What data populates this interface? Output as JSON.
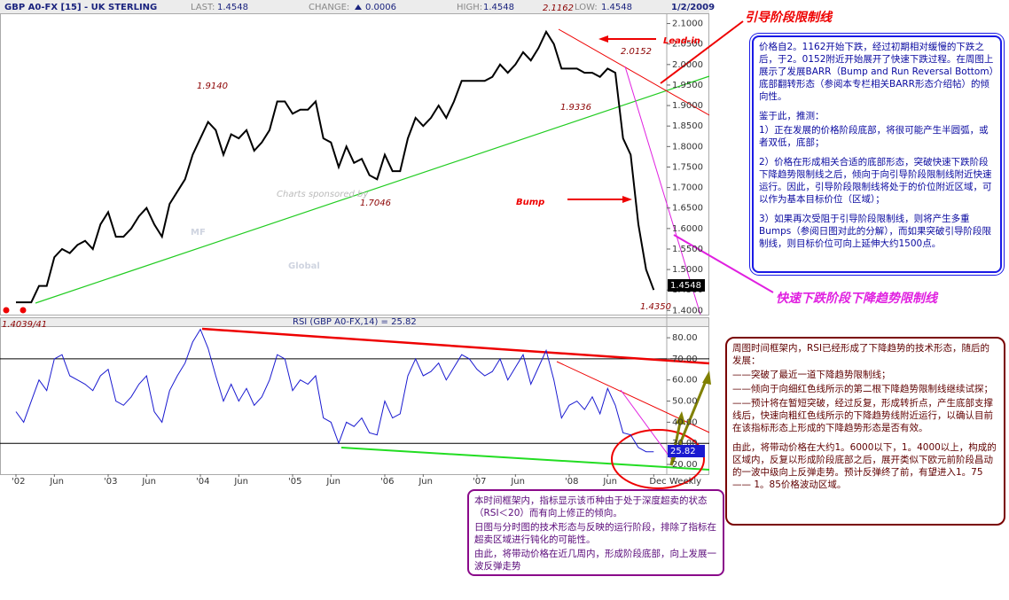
{
  "chart_data": {
    "type": "line",
    "header": {
      "symbol": "GBP A0-FX [15] - UK STERLING",
      "last_label": "LAST:",
      "last": "1.4548",
      "change_label": "CHANGE:",
      "change": "0.0006",
      "high_label": "HIGH:",
      "high": "1.4548",
      "low_label": "LOW:",
      "low": "1.4548",
      "date": "1/2/2009"
    },
    "categories": [
      "'02",
      null,
      null,
      null,
      null,
      "Jun",
      null,
      null,
      null,
      null,
      null,
      null,
      "'03",
      null,
      null,
      null,
      null,
      "Jun",
      null,
      null,
      null,
      null,
      null,
      null,
      "'04",
      null,
      null,
      null,
      null,
      "Jun",
      null,
      null,
      null,
      null,
      null,
      null,
      "'05",
      null,
      null,
      null,
      null,
      "Jun",
      null,
      null,
      null,
      null,
      null,
      null,
      "'06",
      null,
      null,
      null,
      null,
      "Jun",
      null,
      null,
      null,
      null,
      null,
      null,
      "'07",
      null,
      null,
      null,
      null,
      "Jun",
      null,
      null,
      null,
      null,
      null,
      null,
      "'08",
      null,
      null,
      null,
      null,
      "Jun",
      null,
      null,
      null,
      null,
      null,
      "Dec"
    ],
    "series": [
      {
        "color": "#000000",
        "values": [
          1.42,
          1.42,
          1.42,
          1.46,
          1.46,
          1.53,
          1.55,
          1.54,
          1.56,
          1.57,
          1.55,
          1.61,
          1.64,
          1.58,
          1.58,
          1.6,
          1.63,
          1.65,
          1.61,
          1.58,
          1.66,
          1.69,
          1.72,
          1.78,
          1.82,
          1.86,
          1.84,
          1.78,
          1.83,
          1.82,
          1.84,
          1.79,
          1.81,
          1.84,
          1.91,
          1.91,
          1.88,
          1.89,
          1.89,
          1.91,
          1.82,
          1.81,
          1.75,
          1.8,
          1.76,
          1.77,
          1.73,
          1.72,
          1.78,
          1.74,
          1.74,
          1.82,
          1.87,
          1.85,
          1.87,
          1.9,
          1.87,
          1.91,
          1.96,
          1.96,
          1.96,
          1.96,
          1.97,
          2.0,
          1.98,
          2.0,
          2.03,
          2.01,
          2.04,
          2.08,
          2.05,
          1.99,
          1.99,
          1.99,
          1.98,
          1.98,
          1.97,
          1.99,
          1.98,
          1.82,
          1.78,
          1.61,
          1.5,
          1.45
        ]
      },
      {
        "name": "RSI (GBP A0-FX,14) = 25.82",
        "color": "#1a1ad0",
        "axis": "y2",
        "values": [
          45,
          40,
          50,
          60,
          55,
          70,
          72,
          62,
          60,
          58,
          55,
          62,
          65,
          50,
          48,
          52,
          58,
          62,
          45,
          40,
          55,
          62,
          68,
          78,
          84,
          75,
          62,
          50,
          58,
          50,
          56,
          48,
          52,
          60,
          72,
          70,
          55,
          60,
          58,
          62,
          42,
          40,
          30,
          40,
          38,
          42,
          35,
          34,
          50,
          42,
          44,
          62,
          70,
          62,
          64,
          68,
          60,
          66,
          72,
          70,
          65,
          62,
          64,
          70,
          60,
          66,
          72,
          58,
          66,
          74,
          60,
          42,
          48,
          50,
          46,
          52,
          44,
          56,
          48,
          35,
          34,
          28,
          26,
          26
        ]
      }
    ],
    "ylim": [
      1.39,
      2.125
    ],
    "yticks": [
      {
        "value": 1.4,
        "label": "1.4000"
      },
      {
        "value": 1.45,
        "label": "1.4500"
      },
      {
        "value": 1.5,
        "label": "1.5000"
      },
      {
        "value": 1.55,
        "label": "1.5500"
      },
      {
        "value": 1.6,
        "label": "1.6000"
      },
      {
        "value": 1.65,
        "label": "1.6500"
      },
      {
        "value": 1.7,
        "label": "1.7000"
      },
      {
        "value": 1.75,
        "label": "1.7500"
      },
      {
        "value": 1.8,
        "label": "1.8000"
      },
      {
        "value": 1.85,
        "label": "1.8500"
      },
      {
        "value": 1.9,
        "label": "1.9000"
      },
      {
        "value": 1.95,
        "label": "1.9500"
      },
      {
        "value": 2.0,
        "label": "2.0000"
      },
      {
        "value": 2.05,
        "label": "2.0500"
      },
      {
        "value": 2.1,
        "label": "2.1000"
      }
    ],
    "y2lim": [
      15.4,
      85.5
    ],
    "y2ticks": [
      {
        "value": 20,
        "label": "20.00"
      },
      {
        "value": 30,
        "label": "30.00"
      },
      {
        "value": 40,
        "label": "40.00"
      },
      {
        "value": 50,
        "label": "50.00"
      },
      {
        "value": 60,
        "label": "60.00"
      },
      {
        "value": 70,
        "label": "70.00"
      },
      {
        "value": 80,
        "label": "80.00"
      }
    ],
    "y2_reference_lines": [
      30,
      70
    ],
    "annotations": [
      "2.1162",
      "2.0152",
      "1.9140",
      "1.9336",
      "1.7046",
      "1.4350",
      "1.4039/41",
      "Lead-in",
      "Bump",
      "Charts sponsored by",
      "MF",
      "Global",
      "1.4548",
      "25.82",
      "Weekly"
    ]
  },
  "notes": {
    "lead_in_title": "引导阶段限制线",
    "run_title": "快速下跌阶段下降趋势限制线",
    "blue_box": [
      "价格自2。1162开始下跌，经过初期相对缓慢的下跌之后，于2。0152附近开始展开了快速下跌过程。在周图上展示了发展BARR（Bump and Run Reversal Bottom）底部翻转形态（参阅本专栏相关BARR形态介绍帖）的倾向性。",
      "鉴于此，推测：",
      "1）正在发展的价格阶段底部，将很可能产生半圆弧，或者双低，底部；",
      "2）价格在形成相关合适的底部形态，突破快速下跌阶段下降趋势限制线之后，倾向于向引导阶段限制线附近快速运行。因此，引导阶段限制线将处于的价位附近区域，可以作为基本目标价位（区域）；",
      "3）如果再次受阻于引导阶段限制线，则将产生多重Bumps（参阅日图对此的分解），而如果突破引导阶段限制线，则目标价位可向上延伸大约1500点。"
    ],
    "rsi_box": [
      "周图时间框架内，RSI已经形成了下降趋势的技术形态，随后的发展：",
      "——突破了最近一道下降趋势限制线；",
      "——倾向于向细红色线所示的第二根下降趋势限制线继续试探；",
      "——预计将在暂短突破，经过反复，形成转折点，产生底部支撑线后，快速向粗红色线所示的下降趋势线附近运行，以确认目前在该指标形态上形成的下降趋势形态是否有效。",
      "由此，将带动价格在大约1。6000以下，1。4000以上，构成的区域内，反复以形成阶段底部之后，展开类似下欧元前阶段昌动的一波中级向上反弹走势。预计反弹终了前，有望进入1。75 —— 1。85价格波动区域。"
    ],
    "purple_box": [
      "本时间框架内，指标显示该币种由于处于深度超卖的状态（RSI＜20）而有向上修正的倾向。",
      "日图与分时图的技术形态与反映的运行阶段，排除了指标在超卖区域进行钝化的可能性。",
      "由此，将带动价格在近几周内，形成阶段底部，向上发展一波反弹走势"
    ]
  }
}
